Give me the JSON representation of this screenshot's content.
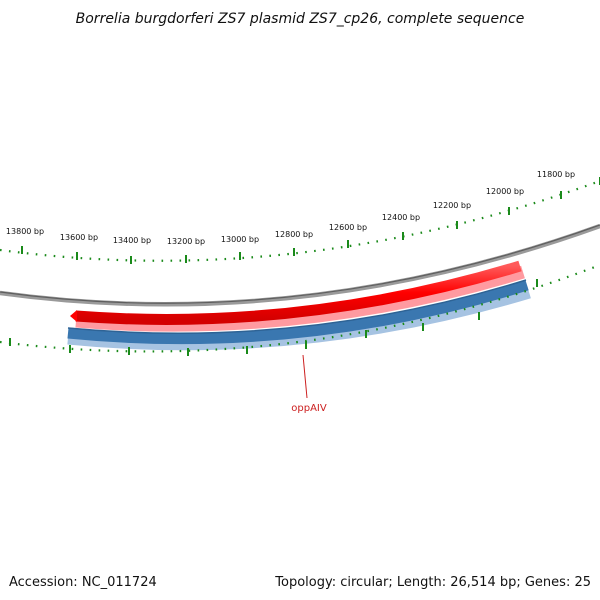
{
  "title": "Borrelia burgdorferi ZS7 plasmid ZS7_cp26, complete sequence",
  "scale": {
    "tick_labels": [
      "11800 bp",
      "12000 bp",
      "12200 bp",
      "12400 bp",
      "12600 bp",
      "12800 bp",
      "13000 bp",
      "13200 bp",
      "13400 bp",
      "13600 bp",
      "13800 bp"
    ]
  },
  "features": [
    {
      "name": "",
      "strand": "forward",
      "color": "#ff0000"
    },
    {
      "name": "oppAIV",
      "strand": "reverse",
      "color": "#3a77b0"
    }
  ],
  "gene_label": "oppAIV",
  "colors": {
    "backbone": "#8a8a8a",
    "ticks": "#1a8a1a",
    "forward_gene": "#ff0000",
    "reverse_gene": "#3a77b0",
    "label": "#cc1f1f"
  },
  "footer": {
    "accession": "Accession: NC_011724",
    "summary": "Topology: circular; Length: 26,514 bp; Genes: 25"
  }
}
